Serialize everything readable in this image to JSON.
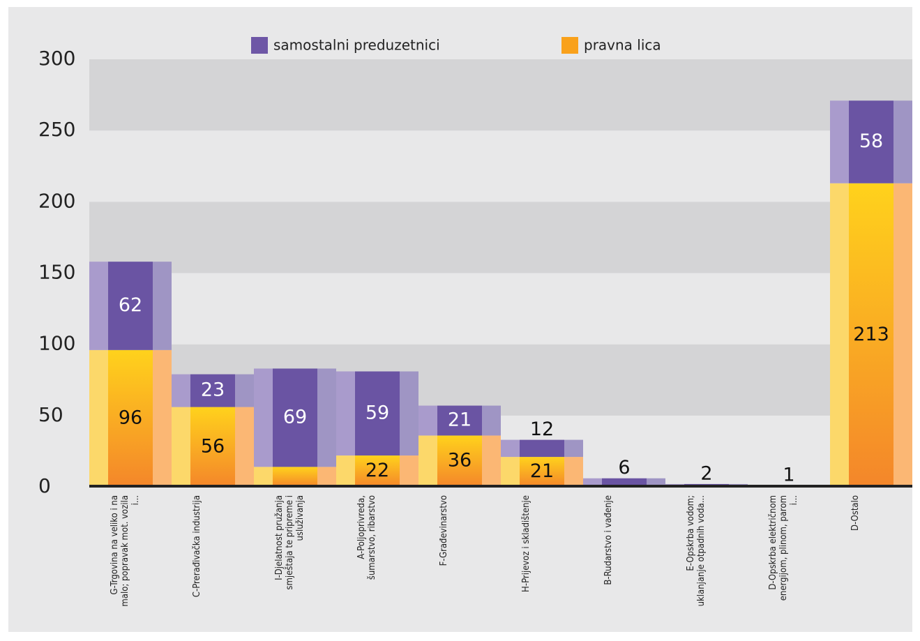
{
  "chart_data": {
    "type": "stacked-bar",
    "categories": [
      "G-Trgovina na veliko i na malo; popravak mot. vozila i...",
      "C-Prerađivačka industrija",
      "I-Djelatnost pružanja smještaja te pripreme i usluživanja",
      "A-Poljoprivreda, šumarstvo, ribarstvo",
      "F-Građevinarstvo",
      "H-Prijevoz i skladištenje",
      "B-Rudarstvo i vađenje",
      "E-Opskrba vodom; uklanjanje otpadnih voda...",
      "D-Opskrba električnom energijom, plinom, parom i...",
      "D-Ostalo"
    ],
    "series": [
      {
        "name": "pravna lica",
        "color": "#f9a11b",
        "values": [
          96,
          56,
          14,
          22,
          36,
          21,
          null,
          null,
          null,
          213
        ]
      },
      {
        "name": "samostalni preduzetnici",
        "color": "#6e57a6",
        "values": [
          62,
          23,
          69,
          59,
          21,
          12,
          6,
          2,
          1,
          58
        ]
      }
    ],
    "ylim": [
      0,
      300
    ],
    "yticks": [
      0,
      50,
      100,
      150,
      200,
      250,
      300
    ],
    "grid": true
  }
}
